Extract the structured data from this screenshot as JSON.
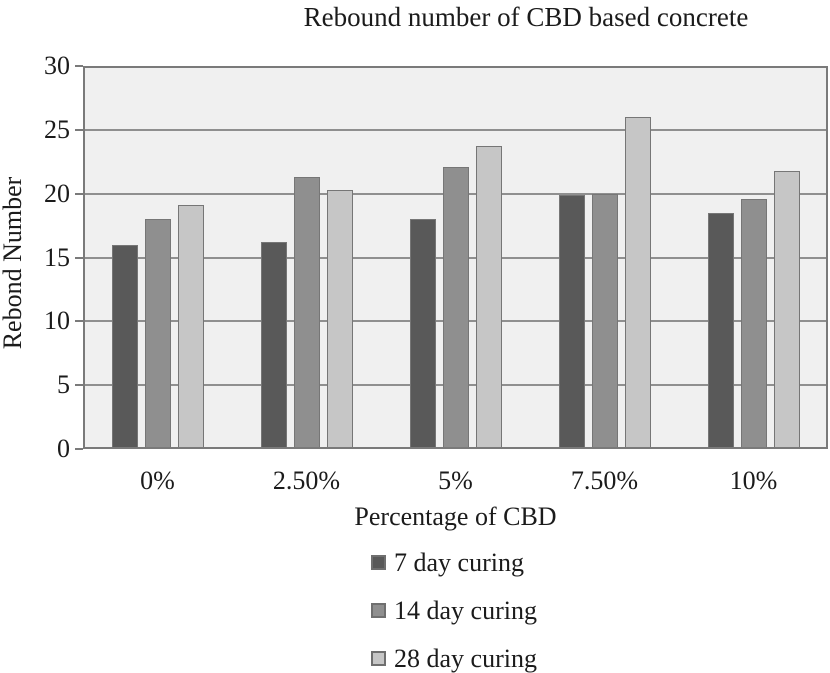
{
  "chart_data": {
    "type": "bar",
    "title": "Rebound number of CBD based concrete",
    "xlabel": "Percentage of CBD",
    "ylabel": "Rebond Number",
    "categories": [
      "0%",
      "2.50%",
      "5%",
      "7.50%",
      "10%"
    ],
    "series": [
      {
        "name": "7 day curing",
        "color": "#595959",
        "values": [
          16.0,
          16.2,
          18.0,
          19.9,
          18.5
        ]
      },
      {
        "name": "14 day curing",
        "color": "#8f8f8f",
        "values": [
          18.0,
          21.3,
          22.1,
          20.0,
          19.6
        ]
      },
      {
        "name": "28 day curing",
        "color": "#c6c6c6",
        "values": [
          19.1,
          20.3,
          23.7,
          26.0,
          21.8
        ]
      }
    ],
    "ylim": [
      0,
      30
    ],
    "yticks": [
      0,
      5,
      10,
      15,
      20,
      25,
      30
    ],
    "grid": true,
    "legend_position": "bottom",
    "plot_bg_color": "#f0f0f0",
    "grid_color": "#8f8f8f",
    "frame_color": "#7a7a7a"
  }
}
